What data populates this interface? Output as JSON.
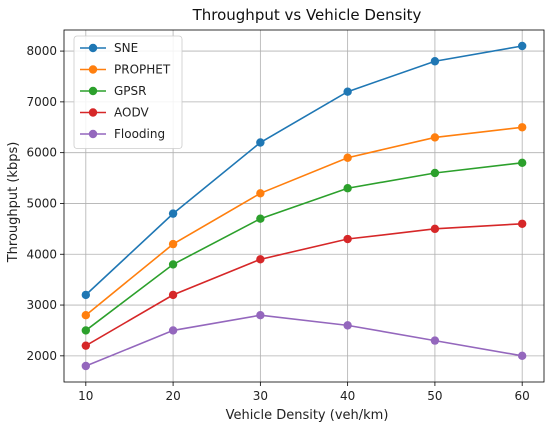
{
  "chart_data": {
    "type": "line",
    "title": "Throughput vs Vehicle Density",
    "xlabel": "Vehicle Density (veh/km)",
    "ylabel": "Throughput (kbps)",
    "x": [
      10,
      20,
      30,
      40,
      50,
      60
    ],
    "xticks": [
      10,
      20,
      30,
      40,
      50,
      60
    ],
    "yticks": [
      2000,
      3000,
      4000,
      5000,
      6000,
      7000,
      8000
    ],
    "xlim": [
      7.5,
      62.5
    ],
    "ylim": [
      1485,
      8415
    ],
    "grid": true,
    "legend_position": "upper left",
    "series": [
      {
        "name": "SNE",
        "color": "#1f77b4",
        "values": [
          3200,
          4800,
          6200,
          7200,
          7800,
          8100
        ]
      },
      {
        "name": "PROPHET",
        "color": "#ff7f0e",
        "values": [
          2800,
          4200,
          5200,
          5900,
          6300,
          6500
        ]
      },
      {
        "name": "GPSR",
        "color": "#2ca02c",
        "values": [
          2500,
          3800,
          4700,
          5300,
          5600,
          5800
        ]
      },
      {
        "name": "AODV",
        "color": "#d62728",
        "values": [
          2200,
          3200,
          3900,
          4300,
          4500,
          4600
        ]
      },
      {
        "name": "Flooding",
        "color": "#9467bd",
        "values": [
          1800,
          2500,
          2800,
          2600,
          2300,
          2000
        ]
      }
    ]
  }
}
